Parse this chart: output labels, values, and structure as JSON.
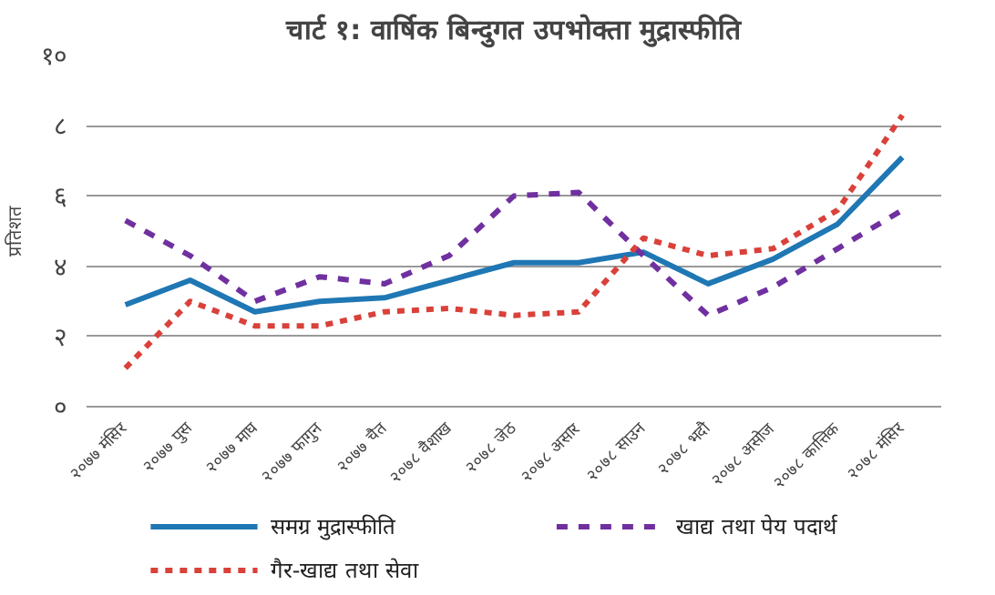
{
  "chart_data": {
    "type": "line",
    "title": "चार्ट १: वार्षिक बिन्दुगत उपभोक्ता मुद्रास्फीति",
    "ylabel": "प्रतिशत",
    "categories": [
      "२०७७ मंसिर",
      "२०७७ पुस",
      "२०७७ माघ",
      "२०७७ फागुन",
      "२०७७ चैत",
      "२०७८ वैशाख",
      "२०७८ जेठ",
      "२०७८ असार",
      "२०७८ साउन",
      "२०७८ भदौ",
      "२०७८ असोज",
      "२०७८ कात्तिक",
      "२०७८ मंसिर"
    ],
    "series": [
      {
        "name": "समग्र मुद्रास्फीति",
        "color": "#1f77b4",
        "line_style": "solid",
        "values": [
          2.9,
          3.6,
          2.7,
          3.0,
          3.1,
          3.6,
          4.1,
          4.1,
          4.4,
          3.5,
          4.2,
          5.2,
          7.1
        ]
      },
      {
        "name": "खाद्य तथा पेय पदार्थ",
        "color": "#7030a0",
        "line_style": "dashed",
        "values": [
          5.3,
          4.3,
          3.0,
          3.7,
          3.5,
          4.3,
          6.0,
          6.1,
          4.3,
          2.6,
          3.4,
          4.5,
          5.6
        ]
      },
      {
        "name": "गैर-खाद्य तथा सेवा",
        "color": "#d9413a",
        "line_style": "dotted",
        "values": [
          1.1,
          3.0,
          2.3,
          2.3,
          2.7,
          2.8,
          2.6,
          2.7,
          4.8,
          4.3,
          4.5,
          5.6,
          8.3
        ]
      }
    ],
    "ylim": [
      0,
      10
    ],
    "yticks": [
      {
        "value": 0,
        "label": "०"
      },
      {
        "value": 2,
        "label": "२"
      },
      {
        "value": 4,
        "label": "४"
      },
      {
        "value": 6,
        "label": "६"
      },
      {
        "value": 8,
        "label": "८"
      },
      {
        "value": 10,
        "label": "१०"
      }
    ],
    "grid": "y",
    "legend": "bottom",
    "marker": "none"
  }
}
